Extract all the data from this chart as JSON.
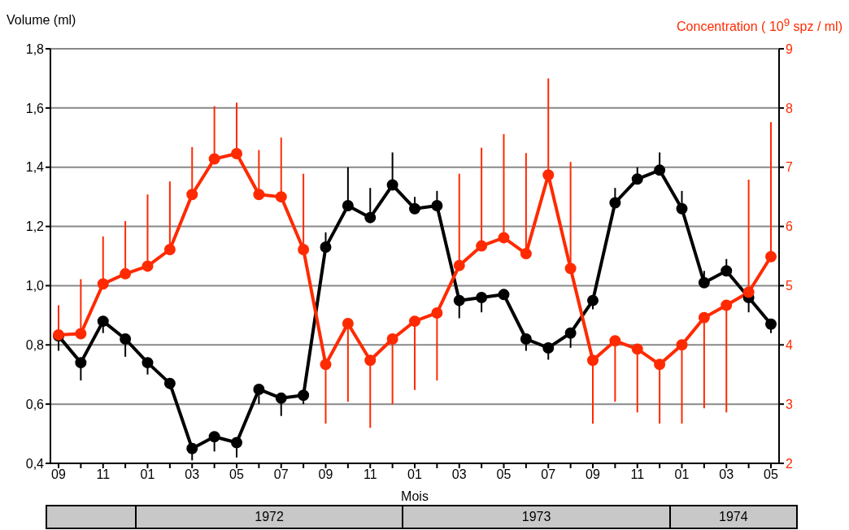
{
  "chart_data": {
    "type": "line",
    "ylabel": "Volume (ml)",
    "y2label": "Concentration ( 10$^{9}$ spz / ml)",
    "xlabel": "Mois",
    "categories": [
      "09",
      null,
      "11",
      null,
      "01",
      null,
      "03",
      null,
      "05",
      null,
      "07",
      null,
      "09",
      null,
      "11",
      null,
      "01",
      null,
      "03",
      null,
      "05",
      null,
      "07",
      null,
      "09",
      null,
      "11",
      null,
      "01",
      null,
      "03",
      null,
      "05"
    ],
    "series": [
      {
        "color": "#000000",
        "values": [
          0.83,
          0.74,
          0.88,
          0.82,
          0.74,
          0.67,
          0.45,
          0.49,
          0.47,
          0.65,
          0.62,
          0.63,
          1.13,
          1.27,
          1.23,
          1.34,
          1.26,
          1.27,
          0.95,
          0.96,
          0.97,
          0.82,
          0.79,
          0.84,
          0.95,
          1.28,
          1.36,
          1.39,
          1.26,
          1.01,
          1.05,
          0.96,
          0.87
        ],
        "errors": [
          [
            0.78,
            0.83
          ],
          [
            0.68,
            0.74
          ],
          [
            0.84,
            0.88
          ],
          [
            0.76,
            0.82
          ],
          [
            0.7,
            0.74
          ],
          [
            0.65,
            0.67
          ],
          [
            0.41,
            0.45
          ],
          [
            0.44,
            0.49
          ],
          [
            0.42,
            0.47
          ],
          [
            0.6,
            0.65
          ],
          [
            0.56,
            0.62
          ],
          [
            0.6,
            0.63
          ],
          [
            1.13,
            1.18
          ],
          [
            1.27,
            1.4
          ],
          [
            1.23,
            1.33
          ],
          [
            1.34,
            1.45
          ],
          [
            1.26,
            1.3
          ],
          [
            1.27,
            1.32
          ],
          [
            0.89,
            0.95
          ],
          [
            0.91,
            0.96
          ],
          null,
          [
            0.78,
            0.82
          ],
          [
            0.75,
            0.79
          ],
          [
            0.79,
            0.84
          ],
          [
            0.92,
            0.95
          ],
          [
            1.28,
            1.33
          ],
          [
            1.36,
            1.4
          ],
          [
            1.39,
            1.45
          ],
          [
            1.26,
            1.32
          ],
          [
            1.01,
            1.05
          ],
          [
            1.05,
            1.09
          ],
          [
            0.91,
            0.96
          ],
          [
            0.84,
            0.87
          ]
        ]
      },
      {
        "color": "#ff2a00",
        "axis": "y2",
        "values": [
          4.17,
          4.19,
          5.03,
          5.2,
          5.33,
          5.61,
          6.54,
          7.14,
          7.23,
          6.54,
          6.5,
          5.61,
          3.67,
          4.36,
          3.74,
          4.1,
          4.4,
          4.54,
          5.34,
          5.67,
          5.81,
          5.54,
          6.87,
          5.29,
          3.74,
          4.07,
          3.93,
          3.67,
          4.0,
          4.46,
          4.67,
          4.89,
          5.49
        ],
        "errors": [
          [
            4.17,
            4.67
          ],
          [
            4.19,
            5.11
          ],
          [
            5.03,
            5.83
          ],
          [
            5.2,
            6.09
          ],
          [
            5.33,
            6.54
          ],
          [
            5.61,
            6.76
          ],
          [
            6.54,
            7.34
          ],
          [
            7.14,
            8.03
          ],
          [
            7.23,
            8.09
          ],
          [
            6.54,
            7.29
          ],
          [
            6.5,
            7.5
          ],
          [
            5.61,
            6.89
          ],
          [
            2.67,
            3.67
          ],
          [
            3.04,
            4.36
          ],
          [
            2.6,
            3.74
          ],
          [
            3.0,
            4.1
          ],
          [
            3.24,
            4.4
          ],
          [
            3.4,
            4.54
          ],
          [
            5.34,
            6.89
          ],
          [
            5.67,
            7.33
          ],
          [
            5.81,
            7.56
          ],
          [
            5.54,
            7.24
          ],
          [
            6.87,
            8.5
          ],
          [
            5.29,
            7.09
          ],
          [
            2.67,
            3.74
          ],
          [
            3.04,
            4.07
          ],
          [
            2.86,
            3.93
          ],
          [
            2.67,
            3.67
          ],
          [
            2.67,
            4.0
          ],
          [
            2.93,
            4.46
          ],
          [
            2.86,
            4.67
          ],
          [
            4.89,
            6.79
          ],
          [
            5.49,
            7.76
          ]
        ]
      }
    ],
    "ylim": [
      0.4,
      1.8
    ],
    "yticks": [
      {
        "value": 0.4,
        "label": "0,4"
      },
      {
        "value": 0.6,
        "label": "0,6"
      },
      {
        "value": 0.8,
        "label": "0,8"
      },
      {
        "value": 1.0,
        "label": "1,0"
      },
      {
        "value": 1.2,
        "label": "1,2"
      },
      {
        "value": 1.4,
        "label": "1,4"
      },
      {
        "value": 1.6,
        "label": "1,6"
      },
      {
        "value": 1.8,
        "label": "1,8"
      }
    ],
    "y2lim": [
      2,
      9
    ],
    "y2ticks": [
      2,
      3,
      4,
      5,
      6,
      7,
      8,
      9
    ],
    "grid": "y",
    "marker": "circle",
    "line_style": "solid",
    "annotations": [
      "1972",
      "1973",
      "1974"
    ]
  }
}
